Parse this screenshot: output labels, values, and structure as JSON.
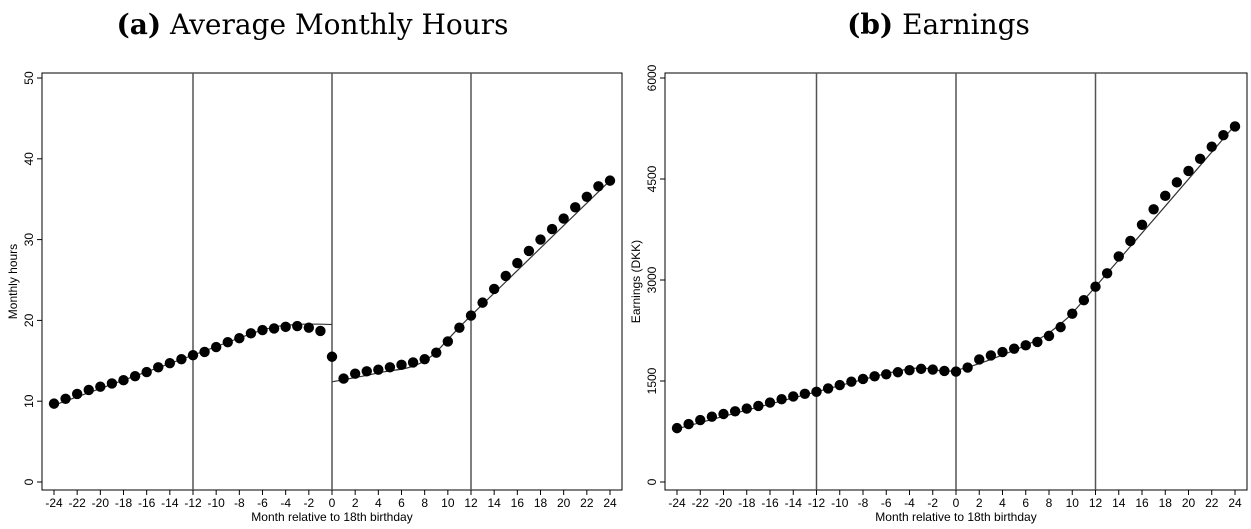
{
  "panels": {
    "a": {
      "label": "(a)",
      "caption": "Average Monthly Hours"
    },
    "b": {
      "label": "(b)",
      "caption": "Earnings"
    }
  },
  "chart_data": [
    {
      "type": "scatter",
      "xlabel": "Month relative to 18th birthday",
      "ylabel": "Monthly hours",
      "xlim": [
        -24,
        24
      ],
      "ylim": [
        0,
        50
      ],
      "xticks": [
        -24,
        -22,
        -20,
        -18,
        -16,
        -14,
        -12,
        -10,
        -8,
        -6,
        -4,
        -2,
        0,
        2,
        4,
        6,
        8,
        10,
        12,
        14,
        16,
        18,
        20,
        22,
        24
      ],
      "yticks": [
        0,
        10,
        20,
        30,
        40,
        50
      ],
      "vlines": [
        -12,
        0,
        12
      ],
      "grid": false,
      "x": [
        -24,
        -23,
        -22,
        -21,
        -20,
        -19,
        -18,
        -17,
        -16,
        -15,
        -14,
        -13,
        -12,
        -11,
        -10,
        -9,
        -8,
        -7,
        -6,
        -5,
        -4,
        -3,
        -2,
        -1,
        0,
        1,
        2,
        3,
        4,
        5,
        6,
        7,
        8,
        9,
        10,
        11,
        12,
        13,
        14,
        15,
        16,
        17,
        18,
        19,
        20,
        21,
        22,
        23,
        24
      ],
      "values": [
        9.7,
        10.3,
        10.9,
        11.4,
        11.8,
        12.2,
        12.6,
        13.1,
        13.6,
        14.2,
        14.7,
        15.2,
        15.7,
        16.1,
        16.7,
        17.3,
        17.8,
        18.4,
        18.8,
        19.0,
        19.2,
        19.3,
        19.1,
        18.7,
        15.5,
        12.8,
        13.4,
        13.7,
        13.9,
        14.2,
        14.5,
        14.8,
        15.2,
        16.0,
        17.4,
        19.1,
        20.6,
        22.2,
        23.9,
        25.5,
        27.1,
        28.6,
        30.0,
        31.3,
        32.6,
        34.0,
        35.3,
        36.6,
        37.3
      ],
      "fit_left": [
        [
          -24,
          9.5
        ],
        [
          -12,
          15.7
        ],
        [
          -6,
          18.8
        ],
        [
          -3,
          19.5
        ],
        [
          0,
          19.5
        ]
      ],
      "fit_right": [
        [
          0,
          12.4
        ],
        [
          4,
          13.5
        ],
        [
          8,
          15.0
        ],
        [
          12,
          20.6
        ],
        [
          24,
          37.3
        ]
      ]
    },
    {
      "type": "scatter",
      "xlabel": "Month relative to 18th birthday",
      "ylabel": "Earnings (DKK)",
      "xlim": [
        -24,
        24
      ],
      "ylim": [
        0,
        6000
      ],
      "xticks": [
        -24,
        -22,
        -20,
        -18,
        -16,
        -14,
        -12,
        -10,
        -8,
        -6,
        -4,
        -2,
        0,
        2,
        4,
        6,
        8,
        10,
        12,
        14,
        16,
        18,
        20,
        22,
        24
      ],
      "yticks": [
        0,
        1500,
        3000,
        4500,
        6000
      ],
      "vlines": [
        -12,
        0,
        12
      ],
      "grid": false,
      "x": [
        -24,
        -23,
        -22,
        -21,
        -20,
        -19,
        -18,
        -17,
        -16,
        -15,
        -14,
        -13,
        -12,
        -11,
        -10,
        -9,
        -8,
        -7,
        -6,
        -5,
        -4,
        -3,
        -2,
        -1,
        0,
        1,
        2,
        3,
        4,
        5,
        6,
        7,
        8,
        9,
        10,
        11,
        12,
        13,
        14,
        15,
        16,
        17,
        18,
        19,
        20,
        21,
        22,
        23,
        24
      ],
      "values": [
        800,
        860,
        920,
        970,
        1010,
        1050,
        1090,
        1130,
        1180,
        1230,
        1270,
        1310,
        1340,
        1390,
        1440,
        1490,
        1530,
        1570,
        1600,
        1630,
        1660,
        1680,
        1670,
        1650,
        1640,
        1700,
        1820,
        1880,
        1930,
        1980,
        2030,
        2080,
        2170,
        2300,
        2500,
        2700,
        2900,
        3100,
        3350,
        3580,
        3820,
        4050,
        4250,
        4450,
        4620,
        4800,
        4980,
        5150,
        5280
      ],
      "fit": [
        [
          -24,
          790
        ],
        [
          -12,
          1340
        ],
        [
          -4,
          1680
        ],
        [
          0,
          1660
        ],
        [
          6,
          2030
        ],
        [
          9,
          2350
        ],
        [
          12,
          2900
        ],
        [
          24,
          5300
        ]
      ]
    }
  ]
}
